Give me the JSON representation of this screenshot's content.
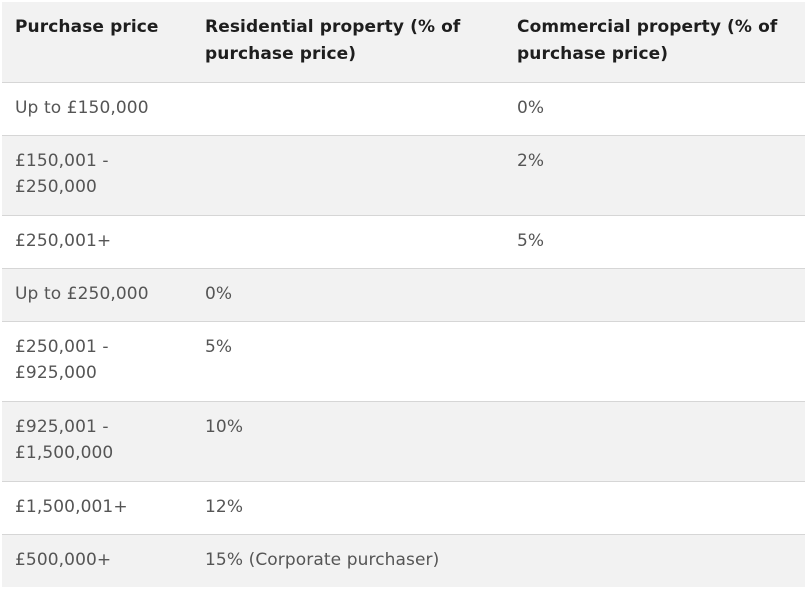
{
  "table": {
    "headers": [
      "Purchase price",
      "Residential property (% of purchase price)",
      "Commercial property (% of purchase price)"
    ],
    "rows": [
      {
        "price": "Up to £150,000",
        "residential": "",
        "commercial": "0%"
      },
      {
        "price": "£150,001 - £250,000",
        "residential": "",
        "commercial": "2%"
      },
      {
        "price": "£250,001+",
        "residential": "",
        "commercial": "5%"
      },
      {
        "price": "Up to £250,000",
        "residential": "0%",
        "commercial": ""
      },
      {
        "price": "£250,001 - £925,000",
        "residential": "5%",
        "commercial": ""
      },
      {
        "price": "£925,001 - £1,500,000",
        "residential": "10%",
        "commercial": ""
      },
      {
        "price": "£1,500,001+",
        "residential": "12%",
        "commercial": ""
      },
      {
        "price": "£500,000+",
        "residential": "15% (Corporate purchaser)",
        "commercial": ""
      }
    ]
  }
}
